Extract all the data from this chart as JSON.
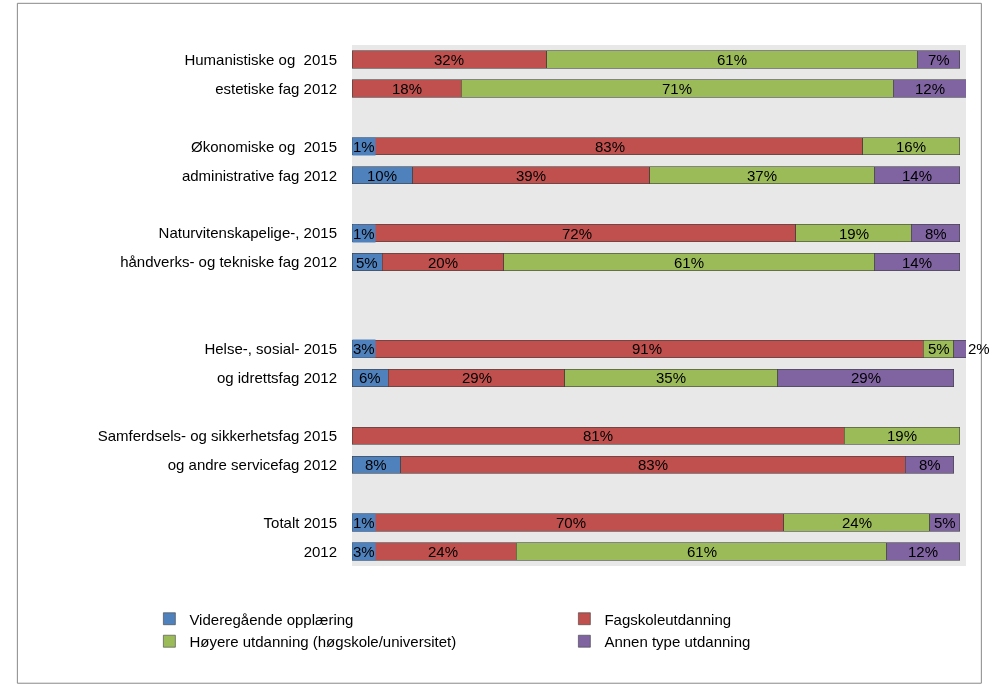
{
  "chart_data": {
    "type": "bar",
    "orientation": "horizontal",
    "stacked": true,
    "categories": [
      "Humanistiske og  2015",
      "estetiske fag 2012",
      null,
      "Økonomiske og  2015",
      "administrative fag 2012",
      null,
      "Naturvitenskapelige-, 2015",
      "håndverks- og tekniske fag 2012",
      null,
      null,
      "Helse-, sosial- 2015",
      "og idrettsfag 2012",
      null,
      "Samferdsels- og sikkerhetsfag 2015",
      "og andre servicefag 2012",
      null,
      "Totalt 2015",
      "2012"
    ],
    "series": [
      {
        "name": "Videregående opplæring",
        "color": "#4f81bd",
        "values": [
          null,
          null,
          null,
          1,
          10,
          null,
          1,
          5,
          null,
          null,
          3,
          6,
          null,
          null,
          8,
          null,
          1,
          3
        ],
        "value_labels": [
          null,
          null,
          null,
          "1%",
          "10%",
          null,
          "1%",
          "5%",
          null,
          null,
          "3%",
          "6%",
          null,
          null,
          "8%",
          null,
          "1%",
          "3%"
        ]
      },
      {
        "name": "Fagskoleutdanning",
        "color": "#c0504d",
        "values": [
          32,
          18,
          null,
          83,
          39,
          null,
          72,
          20,
          null,
          null,
          91,
          29,
          null,
          81,
          83,
          null,
          70,
          24
        ],
        "value_labels": [
          "32%",
          "18%",
          null,
          "83%",
          "39%",
          null,
          "72%",
          "20%",
          null,
          null,
          "91%",
          "29%",
          null,
          "81%",
          "83%",
          null,
          "70%",
          "24%"
        ]
      },
      {
        "name": "Høyere utdanning (høgskole/universitet)",
        "color": "#9bbb59",
        "values": [
          61,
          71,
          null,
          16,
          37,
          null,
          19,
          61,
          null,
          null,
          5,
          35,
          null,
          19,
          null,
          null,
          24,
          61
        ],
        "value_labels": [
          "61%",
          "71%",
          null,
          "16%",
          "37%",
          null,
          "19%",
          "61%",
          null,
          null,
          "5%",
          "35%",
          null,
          "19%",
          null,
          null,
          "24%",
          "61%"
        ]
      },
      {
        "name": "Annen type utdanning",
        "color": "#8064a2",
        "values": [
          7,
          12,
          null,
          null,
          14,
          null,
          8,
          14,
          null,
          null,
          2,
          29,
          null,
          null,
          8,
          null,
          5,
          12
        ],
        "value_labels": [
          "7%",
          "12%",
          null,
          null,
          "14%",
          null,
          "8%",
          "14%",
          null,
          null,
          "2%",
          "29%",
          null,
          null,
          "8%",
          null,
          "5%",
          "12%"
        ]
      }
    ],
    "xlim": [
      0,
      101
    ],
    "tick_labels": "y",
    "legend": "bottom"
  }
}
